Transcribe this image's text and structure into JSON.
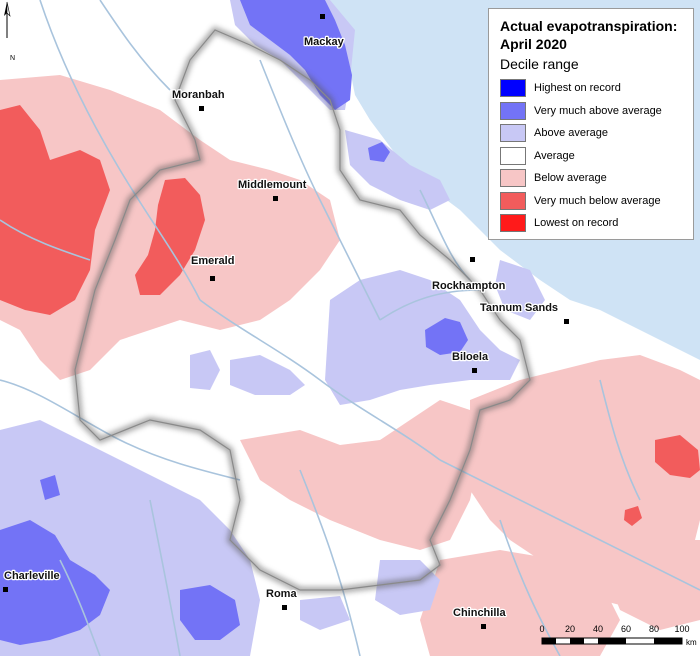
{
  "legend": {
    "title_line1": "Actual evapotranspiration:",
    "title_line2": "April 2020",
    "subtitle": "Decile range",
    "items": [
      {
        "label": "Highest on record",
        "color": "#0000ff"
      },
      {
        "label": "Very much above average",
        "color": "#7373f6"
      },
      {
        "label": "Above average",
        "color": "#c8c8f5"
      },
      {
        "label": "Average",
        "color": "#ffffff"
      },
      {
        "label": "Below average",
        "color": "#f7c6c6"
      },
      {
        "label": "Very much below average",
        "color": "#f25c5c"
      },
      {
        "label": "Lowest on record",
        "color": "#ff1a1a"
      }
    ]
  },
  "north_arrow": {
    "label": "N"
  },
  "towns": {
    "mackay": "Mackay",
    "moranbah": "Moranbah",
    "middlemount": "Middlemount",
    "emerald": "Emerald",
    "rockhampton": "Rockhampton",
    "tannum_sands": "Tannum Sands",
    "biloela": "Biloela",
    "charleville": "Charleville",
    "roma": "Roma",
    "chinchilla": "Chinchilla"
  },
  "scale": {
    "ticks": [
      "0",
      "20",
      "40",
      "60",
      "80",
      "100"
    ],
    "unit": "km"
  },
  "colors": {
    "ocean": "#cfe3f5",
    "rivers": "#a9c4dd",
    "boundary_shadow": "#555555"
  }
}
